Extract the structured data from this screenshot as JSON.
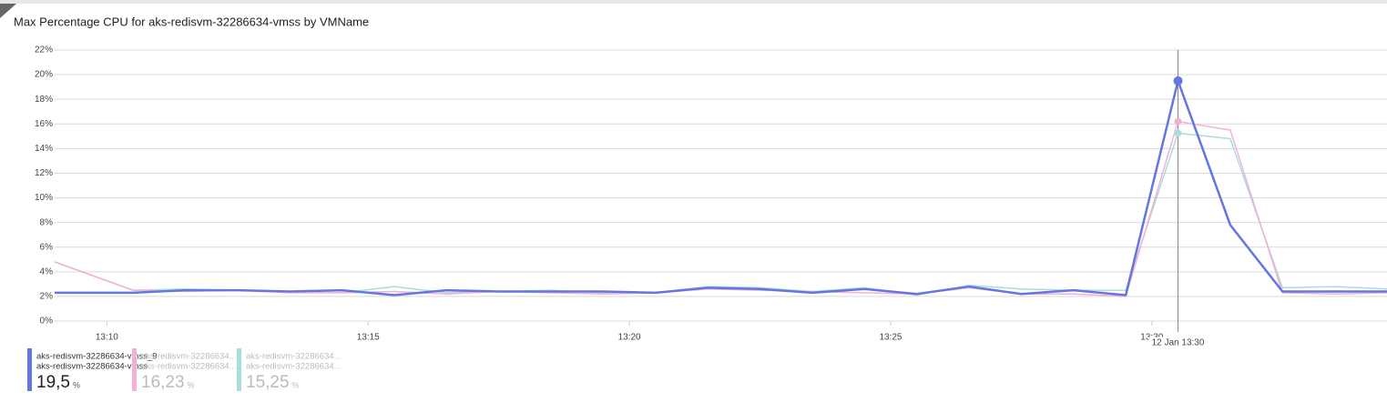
{
  "chart_data": {
    "type": "line",
    "title": "Max Percentage CPU for aks-redisvm-32286634-vmss by VMName",
    "x": [
      9,
      10.5,
      11.5,
      12.5,
      13.5,
      14.5,
      15.5,
      16.5,
      17.5,
      18.5,
      19.5,
      20.5,
      21.5,
      22.5,
      23.5,
      24.5,
      25.5,
      26.5,
      27.5,
      28.5,
      29.5,
      30.5,
      31.5,
      32.5,
      33.5,
      34.5
    ],
    "xlim": [
      9,
      34.5
    ],
    "xticks": [
      {
        "value": 10,
        "label": "13:10"
      },
      {
        "value": 15,
        "label": "13:15"
      },
      {
        "value": 20,
        "label": "13:20"
      },
      {
        "value": 25,
        "label": "13:25"
      },
      {
        "value": 30,
        "label": "13:30"
      }
    ],
    "ylim": [
      0,
      22
    ],
    "yticks": [
      {
        "value": 0,
        "label": "0%"
      },
      {
        "value": 2,
        "label": "2%"
      },
      {
        "value": 4,
        "label": "4%"
      },
      {
        "value": 6,
        "label": "6%"
      },
      {
        "value": 8,
        "label": "8%"
      },
      {
        "value": 10,
        "label": "10%"
      },
      {
        "value": 12,
        "label": "12%"
      },
      {
        "value": 14,
        "label": "14%"
      },
      {
        "value": 16,
        "label": "16%"
      },
      {
        "value": 18,
        "label": "18%"
      },
      {
        "value": 20,
        "label": "20%"
      },
      {
        "value": 22,
        "label": "22%"
      }
    ],
    "grid": true,
    "cursor": {
      "x": 30.5,
      "label": "12 Jan 13:30"
    },
    "legend_unit": "%",
    "series": [
      {
        "name": "aks-redisvm-32286634-vmss_9",
        "resource": "aks-redisvm-32286634-vmss",
        "color": "#6476e3",
        "legend_value": 19.5,
        "legend_value_label": "19,5",
        "values": [
          2.3,
          2.3,
          2.5,
          2.5,
          2.4,
          2.5,
          2.1,
          2.5,
          2.4,
          2.4,
          2.4,
          2.3,
          2.7,
          2.6,
          2.3,
          2.6,
          2.2,
          2.8,
          2.2,
          2.5,
          2.1,
          19.5,
          7.8,
          2.4,
          2.4,
          2.4
        ]
      },
      {
        "name": "aks-redisvm-32286634...",
        "resource": "aks-redisvm-32286634...",
        "color": "#f5aed6",
        "legend_value": 16.23,
        "legend_value_label": "16,23",
        "values": [
          4.8,
          2.5,
          2.4,
          2.5,
          2.3,
          2.3,
          2.4,
          2.2,
          2.4,
          2.3,
          2.2,
          2.3,
          2.6,
          2.5,
          2.4,
          2.3,
          2.2,
          2.7,
          2.2,
          2.2,
          2.0,
          16.2,
          15.5,
          2.3,
          2.2,
          2.3
        ]
      },
      {
        "name": "aks-redisvm-32286634...",
        "resource": "aks-redisvm-32286634...",
        "color": "#aadcdc",
        "legend_value": 15.25,
        "legend_value_label": "15,25",
        "values": [
          4.8,
          2.5,
          2.6,
          2.5,
          2.4,
          2.3,
          2.8,
          2.3,
          2.4,
          2.5,
          2.3,
          2.3,
          2.8,
          2.7,
          2.4,
          2.7,
          2.1,
          2.9,
          2.6,
          2.5,
          2.5,
          15.25,
          14.8,
          2.7,
          2.8,
          2.6
        ]
      }
    ]
  }
}
